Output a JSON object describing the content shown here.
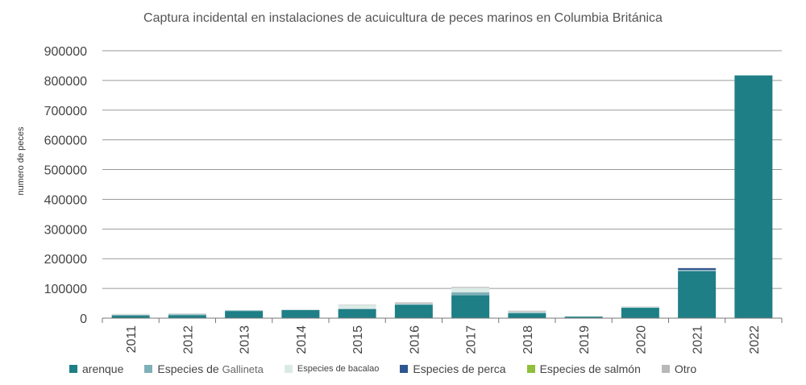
{
  "chart_data": {
    "type": "bar",
    "stacked": true,
    "title": "Captura incidental en instalaciones de acuicultura de peces marinos en Columbia Británica",
    "ylabel": "numero de peces",
    "xlabel": "",
    "ylim": [
      0,
      900000
    ],
    "yticks": [
      "0",
      "100000",
      "200000",
      "300000",
      "400000",
      "500000",
      "600000",
      "700000",
      "800000",
      "900000"
    ],
    "grid": true,
    "legend_position": "bottom",
    "categories": [
      "2011",
      "2012",
      "2013",
      "2014",
      "2015",
      "2016",
      "2017",
      "2018",
      "2019",
      "2020",
      "2021",
      "2022"
    ],
    "series": [
      {
        "name": "arenque",
        "color": "#1e7f86",
        "values": [
          8000,
          10000,
          24000,
          27000,
          30000,
          45000,
          77000,
          16000,
          5000,
          35000,
          158000,
          817000
        ]
      },
      {
        "name": "Especies de Gallineta",
        "color": "#7fb0b8",
        "values": [
          3000,
          3000,
          2000,
          1000,
          2000,
          2000,
          10000,
          3000,
          1000,
          1000,
          3000,
          0
        ]
      },
      {
        "name": "Especies de bacalao",
        "color": "#dceae6",
        "values": [
          2000,
          2000,
          1000,
          1000,
          13000,
          2000,
          15000,
          3000,
          1000,
          2000,
          1000,
          0
        ]
      },
      {
        "name": "Especies de perca",
        "color": "#2d5590",
        "values": [
          0,
          0,
          0,
          0,
          0,
          0,
          0,
          0,
          0,
          0,
          6000,
          0
        ]
      },
      {
        "name": "Especies de salmón",
        "color": "#8fbf3c",
        "values": [
          0,
          0,
          0,
          0,
          0,
          0,
          0,
          0,
          0,
          0,
          0,
          0
        ]
      },
      {
        "name": "Otro",
        "color": "#b8b8b8",
        "values": [
          1000,
          1000,
          0,
          0,
          1000,
          4000,
          3000,
          3000,
          0,
          1000,
          1000,
          0
        ]
      }
    ],
    "legend_labels": {
      "s0": "arenque",
      "s1a": "Especies de ",
      "s1b": "Gallineta",
      "s2": "Especies de bacalao",
      "s3": "Especies de perca",
      "s4": "Especies de salmón",
      "s5": "Otro"
    }
  }
}
